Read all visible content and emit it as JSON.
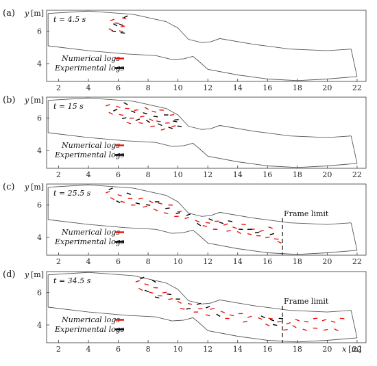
{
  "figure": {
    "panels": [
      {
        "label": "(a)",
        "time": "t = 4.5 s",
        "frame_limit": "",
        "logs": {
          "numerical": [
            [
              5.6,
              6.7
            ],
            [
              6.4,
              6.8
            ],
            [
              5.9,
              6.5
            ],
            [
              6.3,
              6.3
            ],
            [
              5.5,
              6.1
            ],
            [
              6.2,
              6.0
            ]
          ],
          "experimental": [
            [
              6.5,
              6.9
            ],
            [
              5.8,
              6.4
            ],
            [
              6.2,
              6.4
            ],
            [
              5.7,
              6.0
            ],
            [
              6.3,
              5.9
            ]
          ]
        }
      },
      {
        "label": "(b)",
        "time": "t = 15 s",
        "frame_limit": "",
        "logs": {
          "numerical": [
            [
              5.3,
              6.8
            ],
            [
              6.0,
              6.7
            ],
            [
              6.6,
              6.6
            ],
            [
              7.2,
              6.5
            ],
            [
              7.9,
              6.6
            ],
            [
              8.4,
              6.4
            ],
            [
              8.9,
              6.5
            ],
            [
              9.6,
              6.2
            ],
            [
              5.5,
              6.3
            ],
            [
              6.2,
              6.2
            ],
            [
              6.9,
              6.0
            ],
            [
              7.6,
              6.1
            ],
            [
              8.2,
              5.9
            ],
            [
              8.7,
              5.8
            ],
            [
              9.3,
              5.7
            ],
            [
              9.7,
              5.5
            ],
            [
              6.7,
              5.7
            ],
            [
              7.5,
              5.7
            ],
            [
              8.3,
              5.5
            ],
            [
              9.0,
              5.3
            ]
          ],
          "experimental": [
            [
              5.8,
              6.5
            ],
            [
              6.5,
              6.9
            ],
            [
              7.0,
              6.4
            ],
            [
              7.8,
              6.3
            ],
            [
              8.5,
              6.1
            ],
            [
              9.2,
              6.2
            ],
            [
              9.9,
              5.9
            ],
            [
              6.4,
              6.0
            ],
            [
              7.3,
              5.9
            ],
            [
              8.0,
              5.8
            ],
            [
              8.8,
              5.6
            ],
            [
              9.5,
              5.4
            ],
            [
              9.8,
              5.8
            ],
            [
              10.1,
              5.5
            ]
          ]
        }
      },
      {
        "label": "(c)",
        "time": "t = 25.5 s",
        "frame_limit": "Frame limit",
        "logs": {
          "numerical": [
            [
              5.3,
              6.8
            ],
            [
              6.1,
              6.6
            ],
            [
              6.8,
              6.4
            ],
            [
              7.5,
              6.4
            ],
            [
              8.2,
              6.2
            ],
            [
              8.8,
              6.1
            ],
            [
              9.5,
              6.0
            ],
            [
              10.1,
              5.6
            ],
            [
              5.6,
              6.4
            ],
            [
              6.3,
              6.2
            ],
            [
              7.0,
              6.0
            ],
            [
              7.8,
              5.9
            ],
            [
              8.5,
              5.7
            ],
            [
              9.2,
              5.5
            ],
            [
              9.9,
              5.3
            ],
            [
              10.6,
              5.2
            ],
            [
              11.3,
              5.0
            ],
            [
              12.0,
              4.9
            ],
            [
              12.6,
              5.0
            ],
            [
              13.2,
              4.8
            ],
            [
              13.8,
              4.6
            ],
            [
              14.4,
              4.8
            ],
            [
              15.0,
              4.5
            ],
            [
              15.6,
              4.4
            ],
            [
              16.2,
              4.6
            ],
            [
              16.6,
              3.9
            ],
            [
              13.4,
              4.4
            ],
            [
              14.1,
              4.3
            ],
            [
              14.8,
              4.2
            ],
            [
              15.4,
              4.1
            ],
            [
              16.0,
              4.0
            ],
            [
              16.8,
              3.7
            ],
            [
              11.8,
              4.7
            ],
            [
              12.5,
              4.5
            ]
          ],
          "experimental": [
            [
              5.5,
              7.0
            ],
            [
              6.0,
              6.2
            ],
            [
              6.7,
              6.7
            ],
            [
              7.3,
              6.1
            ],
            [
              8.0,
              6.0
            ],
            [
              8.6,
              6.2
            ],
            [
              9.3,
              5.8
            ],
            [
              10.0,
              5.5
            ],
            [
              10.7,
              5.4
            ],
            [
              11.4,
              4.8
            ],
            [
              12.2,
              5.1
            ],
            [
              12.9,
              4.9
            ],
            [
              13.5,
              5.0
            ],
            [
              14.2,
              4.5
            ],
            [
              14.8,
              4.5
            ],
            [
              15.3,
              4.3
            ],
            [
              16.3,
              4.2
            ]
          ]
        }
      },
      {
        "label": "(d)",
        "time": "t = 34.5 s",
        "frame_limit": "Frame limit",
        "logs": {
          "numerical": [
            [
              7.3,
              6.7
            ],
            [
              7.9,
              6.5
            ],
            [
              8.5,
              6.3
            ],
            [
              9.1,
              6.0
            ],
            [
              7.5,
              6.2
            ],
            [
              8.2,
              6.0
            ],
            [
              8.8,
              5.8
            ],
            [
              9.5,
              5.6
            ],
            [
              10.1,
              5.4
            ],
            [
              10.8,
              5.3
            ],
            [
              11.5,
              5.0
            ],
            [
              12.3,
              5.0
            ],
            [
              13.0,
              4.8
            ],
            [
              13.6,
              4.6
            ],
            [
              14.2,
              4.7
            ],
            [
              14.8,
              4.5
            ],
            [
              15.5,
              4.4
            ],
            [
              16.2,
              4.4
            ],
            [
              16.8,
              4.2
            ],
            [
              17.4,
              4.1
            ],
            [
              18.0,
              4.3
            ],
            [
              18.6,
              4.2
            ],
            [
              19.2,
              4.4
            ],
            [
              19.8,
              4.3
            ],
            [
              20.4,
              4.2
            ],
            [
              21.0,
              4.4
            ],
            [
              17.2,
              3.7
            ],
            [
              17.8,
              3.9
            ],
            [
              18.5,
              3.7
            ],
            [
              19.2,
              3.8
            ],
            [
              19.9,
              3.7
            ],
            [
              20.6,
              3.7
            ],
            [
              12.0,
              4.6
            ],
            [
              13.3,
              4.4
            ],
            [
              14.5,
              4.2
            ],
            [
              16.0,
              4.0
            ],
            [
              10.3,
              5.0
            ],
            [
              11.2,
              4.8
            ]
          ],
          "experimental": [
            [
              7.6,
              6.9
            ],
            [
              8.4,
              6.7
            ],
            [
              7.9,
              6.1
            ],
            [
              8.6,
              5.7
            ],
            [
              9.4,
              5.9
            ],
            [
              10.0,
              5.6
            ],
            [
              10.7,
              5.0
            ],
            [
              11.4,
              5.3
            ],
            [
              12.0,
              5.1
            ],
            [
              12.7,
              4.6
            ],
            [
              15.7,
              4.5
            ],
            [
              16.3,
              4.3
            ],
            [
              16.5,
              4.0
            ],
            [
              16.9,
              4.4
            ]
          ]
        }
      }
    ],
    "legend": {
      "numerical": "Numerical logs",
      "experimental": "Experimental logs",
      "numerical_color": "#e8140c",
      "experimental_color": "#000000"
    },
    "axes": {
      "y_axis_label": "y",
      "x_axis_label": "x",
      "unit": "[m]",
      "x_ticks": [
        2,
        4,
        6,
        8,
        10,
        12,
        14,
        16,
        18,
        20,
        22
      ],
      "y_ticks": [
        4,
        6
      ],
      "x_range": [
        1.2,
        22.6
      ],
      "y_range": [
        2.9,
        7.3
      ],
      "frame_limit_x": 17.0
    },
    "channel": {
      "top_boundary": [
        [
          1.3,
          7.1
        ],
        [
          4.0,
          7.25
        ],
        [
          7.0,
          7.05
        ],
        [
          9.2,
          6.6
        ],
        [
          10.0,
          6.2
        ],
        [
          10.7,
          5.5
        ],
        [
          11.6,
          5.3
        ],
        [
          12.2,
          5.35
        ],
        [
          12.8,
          5.55
        ],
        [
          15.0,
          5.2
        ],
        [
          17.5,
          4.9
        ],
        [
          20.0,
          4.8
        ],
        [
          21.6,
          4.9
        ]
      ],
      "bottom_boundary": [
        [
          1.3,
          5.1
        ],
        [
          4.0,
          4.8
        ],
        [
          6.5,
          4.6
        ],
        [
          8.5,
          4.5
        ],
        [
          9.6,
          4.25
        ],
        [
          10.4,
          4.3
        ],
        [
          11.0,
          4.45
        ],
        [
          11.4,
          4.15
        ],
        [
          12.0,
          3.65
        ],
        [
          14.0,
          3.3
        ],
        [
          16.0,
          3.05
        ],
        [
          18.0,
          2.95
        ],
        [
          20.0,
          3.05
        ],
        [
          22.0,
          3.2
        ]
      ]
    }
  }
}
